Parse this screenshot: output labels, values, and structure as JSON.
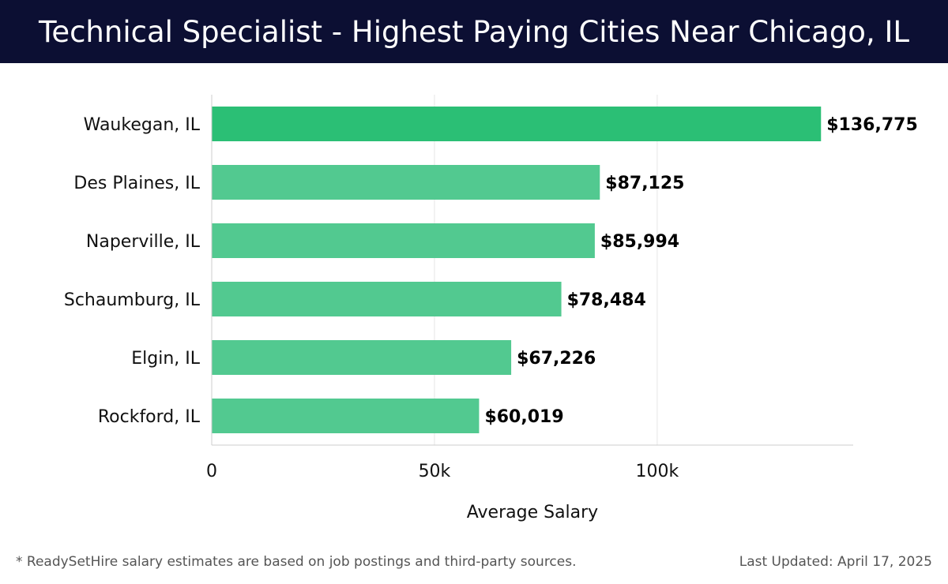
{
  "header": {
    "title": "Technical Specialist - Highest Paying Cities Near Chicago, IL"
  },
  "footer": {
    "note": "* ReadySetHire salary estimates are based on job postings and third-party sources.",
    "updated": "Last Updated: April 17, 2025"
  },
  "chart_data": {
    "type": "bar",
    "orientation": "horizontal",
    "title": "Technical Specialist - Highest Paying Cities Near Chicago, IL",
    "xlabel": "Average Salary",
    "ylabel": "",
    "categories": [
      "Waukegan, IL",
      "Des Plaines, IL",
      "Naperville, IL",
      "Schaumburg, IL",
      "Elgin, IL",
      "Rockford, IL"
    ],
    "values": [
      136775,
      87125,
      85994,
      78484,
      67226,
      60019
    ],
    "value_labels": [
      "$136,775",
      "$87,125",
      "$85,994",
      "$78,484",
      "$67,226",
      "$60,019"
    ],
    "xlim": [
      0,
      144000
    ],
    "x_ticks": [
      0,
      50000,
      100000
    ],
    "x_tick_labels": [
      "0",
      "50k",
      "100k"
    ],
    "grid": "vertical",
    "colors": {
      "top_bar": "#2bbf75",
      "bar": "#52c990",
      "grid": "#e6e6e6",
      "axis": "#cccccc"
    }
  }
}
